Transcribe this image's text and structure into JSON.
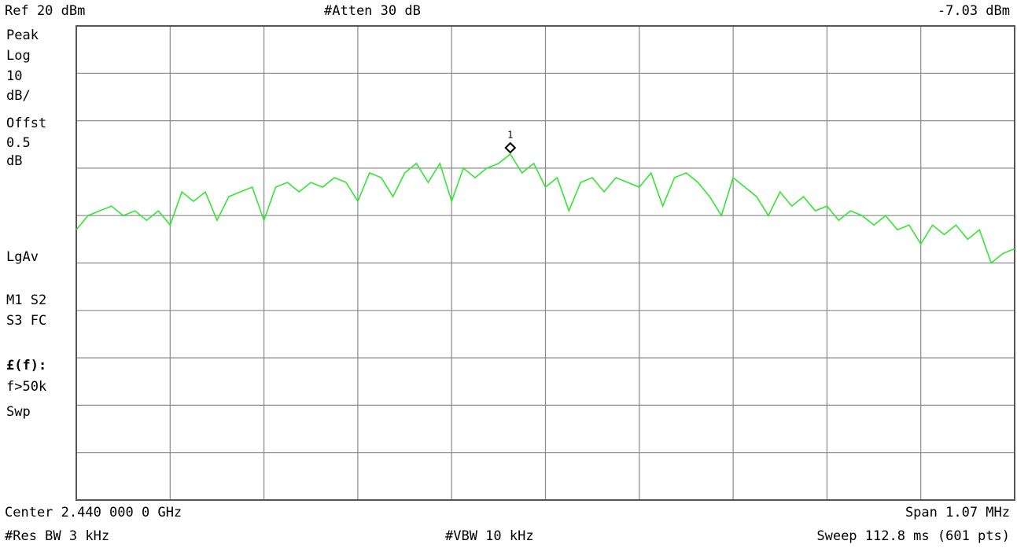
{
  "chart_data": {
    "type": "line",
    "header": {
      "ref": "Ref 20 dBm",
      "atten": "#Atten 30 dB",
      "readout": "-7.03 dBm"
    },
    "side_panel": [
      "Peak",
      "Log",
      "10",
      "dB/",
      "Offst",
      "0.5",
      "dB",
      "LgAv",
      "M1  S2",
      "S3  FC",
      "£(f):",
      "f>50k",
      "Swp"
    ],
    "footer": {
      "center": "Center 2.440 000 0 GHz",
      "span": "Span 1.07 MHz",
      "rbw": "#Res BW 3 kHz",
      "vbw": "#VBW 10 kHz",
      "sweep": "Sweep 112.8 ms (601 pts)"
    },
    "marker_label": "1",
    "ylim": [
      -80,
      20
    ],
    "yticks": [
      -80,
      -70,
      -60,
      -50,
      -40,
      -30,
      -20,
      -10,
      0,
      10,
      20
    ],
    "grid": true,
    "color": "#33e633",
    "values": [
      -23,
      -20,
      -19,
      -18,
      -20,
      -19,
      -21,
      -19,
      -22,
      -15,
      -17,
      -15,
      -21,
      -16,
      -15,
      -14,
      -21,
      -14,
      -13,
      -15,
      -13,
      -14,
      -12,
      -13,
      -17,
      -11,
      -12,
      -16,
      -11,
      -9,
      -13,
      -9,
      -17,
      -10,
      -12,
      -10,
      -9,
      -7.03,
      -11,
      -9,
      -14,
      -12,
      -19,
      -13,
      -12,
      -15,
      -12,
      -13,
      -14,
      -11,
      -18,
      -12,
      -11,
      -13,
      -16,
      -20,
      -12,
      -14,
      -16,
      -20,
      -15,
      -18,
      -16,
      -19,
      -18,
      -21,
      -19,
      -20,
      -22,
      -20,
      -23,
      -22,
      -26,
      -22,
      -24,
      -22,
      -25,
      -23,
      -30,
      -28,
      -27
    ]
  }
}
